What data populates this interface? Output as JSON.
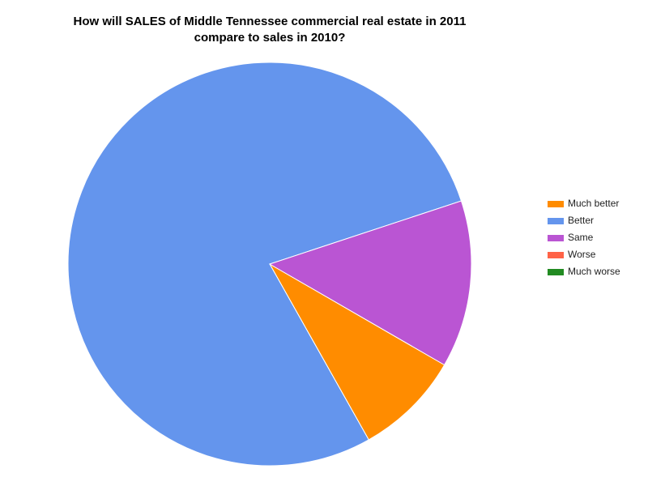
{
  "chart_data": {
    "type": "pie",
    "title": [
      "How will SALES of Middle Tennessee commercial real estate in 2011",
      "compare to sales in 2010?"
    ],
    "categories": [
      "Much better",
      "Better",
      "Same",
      "Worse",
      "Much worse"
    ],
    "values": [
      8.5,
      78.1,
      13.4,
      0,
      0
    ],
    "colors": [
      "#ff8c00",
      "#6495ed",
      "#ba55d3",
      "#ff6347",
      "#228b22"
    ],
    "legend": "right"
  }
}
